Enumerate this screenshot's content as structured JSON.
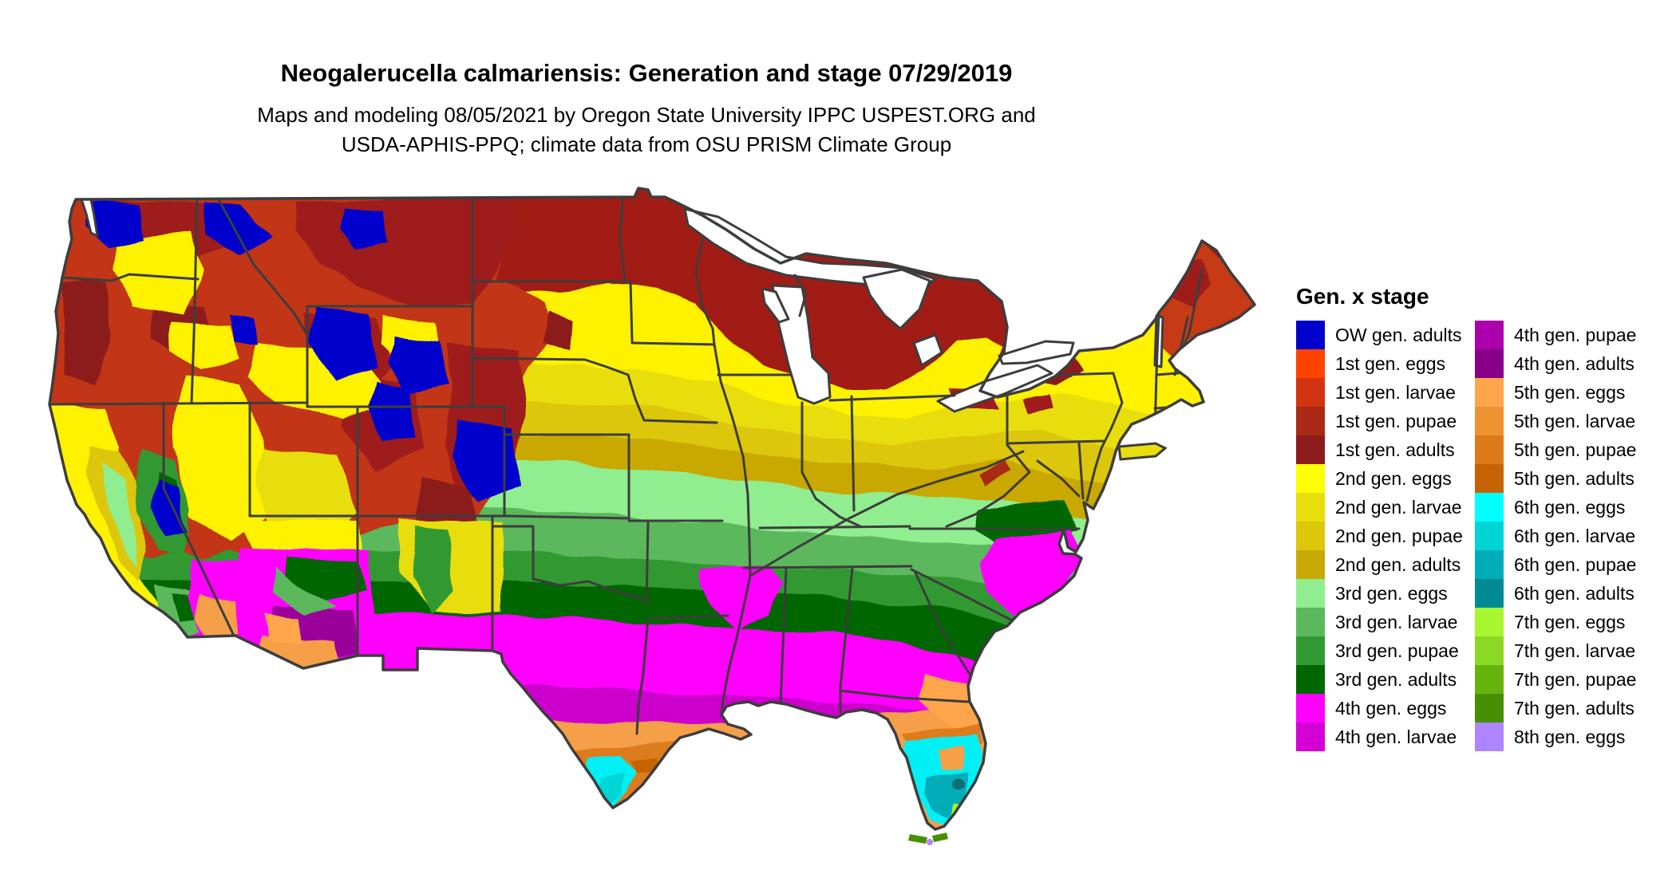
{
  "title": "Neogalerucella calmariensis: Generation and stage 07/29/2019",
  "subtitle_line1": "Maps and modeling 08/05/2021 by Oregon State University IPPC USPEST.ORG and",
  "subtitle_line2": "USDA-APHIS-PPQ; climate data from OSU PRISM Climate Group",
  "legend": {
    "title": "Gen. x stage",
    "columns": [
      {
        "items": [
          {
            "label": "OW gen. adults",
            "color": "#0000CC"
          },
          {
            "label": "1st gen. eggs",
            "color": "#FF4200"
          },
          {
            "label": "1st gen. larvae",
            "color": "#D23310"
          },
          {
            "label": "1st gen. pupae",
            "color": "#AA2A15"
          },
          {
            "label": "1st gen. adults",
            "color": "#8C1C1C"
          },
          {
            "label": "2nd gen. eggs",
            "color": "#FFFF00"
          },
          {
            "label": "2nd gen. larvae",
            "color": "#E8DE0B"
          },
          {
            "label": "2nd gen. pupae",
            "color": "#DCC70A"
          },
          {
            "label": "2nd gen. adults",
            "color": "#C9A805"
          },
          {
            "label": "3rd gen. eggs",
            "color": "#90EE90"
          },
          {
            "label": "3rd gen. larvae",
            "color": "#5CB85C"
          },
          {
            "label": "3rd gen. pupae",
            "color": "#339933"
          },
          {
            "label": "3rd gen. adults",
            "color": "#006600"
          },
          {
            "label": "4th gen. eggs",
            "color": "#FF00FF"
          },
          {
            "label": "4th gen. larvae",
            "color": "#D400D4"
          }
        ]
      },
      {
        "items": [
          {
            "label": "4th gen. pupae",
            "color": "#AC00AC"
          },
          {
            "label": "4th gen. adults",
            "color": "#880088"
          },
          {
            "label": "5th gen. eggs",
            "color": "#FFA64D"
          },
          {
            "label": "5th gen. larvae",
            "color": "#EE9332"
          },
          {
            "label": "5th gen. pupae",
            "color": "#DD7B1B"
          },
          {
            "label": "5th gen. adults",
            "color": "#C66405"
          },
          {
            "label": "6th gen. eggs",
            "color": "#00FFFF"
          },
          {
            "label": "6th gen. larvae",
            "color": "#00D5D5"
          },
          {
            "label": "6th gen. pupae",
            "color": "#00ACB8"
          },
          {
            "label": "6th gen. adults",
            "color": "#008B94"
          },
          {
            "label": "7th gen. eggs",
            "color": "#A8F62F"
          },
          {
            "label": "7th gen. larvae",
            "color": "#8CD925"
          },
          {
            "label": "7th gen. pupae",
            "color": "#66B30D"
          },
          {
            "label": "7th gen. adults",
            "color": "#478F03"
          },
          {
            "label": "8th gen. eggs",
            "color": "#AE85FF"
          }
        ]
      }
    ]
  },
  "map": {
    "background": "#FFFFFF",
    "border_color": "#3D3D3D",
    "water_color": "#FFFFFF",
    "palette": {
      "ow_adults": "#0000CC",
      "g1_eggs": "#FF4200",
      "g1_larvae": "#D23310",
      "g1_larvae_bright": "#C63A12",
      "g1_pupae": "#AA2A15",
      "g1_pupae_deep": "#9E1F1C",
      "g1_adults": "#8C1C1C",
      "north_tier": "#A21D18",
      "west_base": "#C23512",
      "g2_eggs": "#FFF200",
      "g2_larvae": "#E8DE0B",
      "g2_pupae": "#DCC70A",
      "g2_adults": "#C9A805",
      "g3_eggs": "#90EE90",
      "g3_larvae": "#5CB85C",
      "g3_pupae": "#339933",
      "g3_adults": "#006600",
      "g4_eggs": "#FF00FF",
      "g4_larvae": "#CC00CC",
      "g4_pupae": "#AC00AC",
      "g4_adults": "#9A009A",
      "g5_eggs": "#FFA64D",
      "g5_larvae": "#F5A04A",
      "g5_pupae": "#DD7B1B",
      "g5_adults": "#C66405",
      "g6_eggs": "#00F0F5",
      "g6_larvae": "#00D5D5",
      "g6_pupae": "#00ACB8",
      "g6_adults": "#008B94",
      "g7_eggs": "#A8F62F",
      "g7_adults": "#478F03",
      "g8_eggs": "#AE85FF",
      "okeechobee": "#0A6E78"
    }
  }
}
